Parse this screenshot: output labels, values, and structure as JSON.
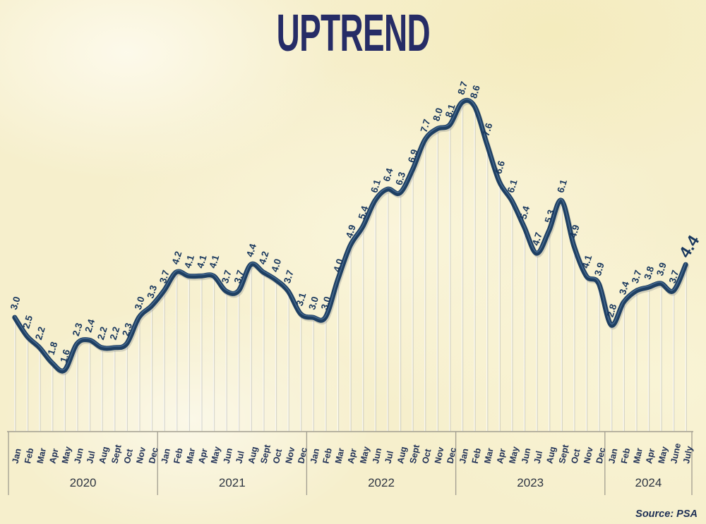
{
  "title": "UPTREND",
  "source": "Source: PSA",
  "colors": {
    "background": "#f6efcc",
    "line": "#1e3f62",
    "line_highlight": "#54799f",
    "line_shadow": "rgba(45,55,75,0.18)",
    "label": "#17365d",
    "month": "#1e2f55",
    "year": "#2e3542",
    "axis": "#a19d90",
    "grid": "#fbfaf4",
    "grid_shadow": "#8f959c",
    "title": "#262c66",
    "source": "#1d2f55"
  },
  "chart_data": {
    "type": "line",
    "title": "UPTREND",
    "ylabel": "",
    "xlabel": "",
    "ylim": [
      1.0,
      9.5
    ],
    "grid": "vertical-drop-lines",
    "legend": "none",
    "source": "Source: PSA",
    "years": [
      {
        "year": "2020",
        "months": [
          "Jan",
          "Feb",
          "Mar",
          "Apr",
          "May",
          "Jun",
          "Jul",
          "Aug",
          "Sept",
          "Oct",
          "Nov",
          "Dec"
        ],
        "values": [
          "3.0",
          "2.5",
          "2.2",
          "1.8",
          "1.6",
          "2.3",
          "2.4",
          "2.2",
          "2.2",
          "2.3",
          "3.0",
          "3.3"
        ]
      },
      {
        "year": "2021",
        "months": [
          "Jan",
          "Feb",
          "Mar",
          "Apr",
          "May",
          "Jun",
          "Jul",
          "Aug",
          "Sept",
          "Oct",
          "Nov",
          "Dec"
        ],
        "values": [
          "3.7",
          "4.2",
          "4.1",
          "4.1",
          "4.1",
          "3.7",
          "3.7",
          "4.4",
          "4.2",
          "4.0",
          "3.7",
          "3.1"
        ]
      },
      {
        "year": "2022",
        "months": [
          "Jan",
          "Feb",
          "Mar",
          "Apr",
          "May",
          "Jun",
          "Jul",
          "Aug",
          "Sept",
          "Oct",
          "Nov",
          "Dec"
        ],
        "values": [
          "3.0",
          "3.0",
          "4.0",
          "4.9",
          "5.4",
          "6.1",
          "6.4",
          "6.3",
          "6.9",
          "7.7",
          "8.0",
          "8.1"
        ]
      },
      {
        "year": "2023",
        "months": [
          "Jan",
          "Feb",
          "Mar",
          "Apr",
          "May",
          "Jun",
          "Jul",
          "Aug",
          "Sept",
          "Oct",
          "Nov",
          "Dec"
        ],
        "values": [
          "8.7",
          "8.6",
          "7.6",
          "6.6",
          "6.1",
          "5.4",
          "4.7",
          "5.3",
          "6.1",
          "4.9",
          "4.1",
          "3.9"
        ]
      },
      {
        "year": "2024",
        "months": [
          "Jan",
          "Feb",
          "Mar",
          "Apr",
          "May",
          "June",
          "July"
        ],
        "values": [
          "2.8",
          "3.4",
          "3.7",
          "3.8",
          "3.9",
          "3.7",
          "4.4"
        ]
      }
    ]
  }
}
